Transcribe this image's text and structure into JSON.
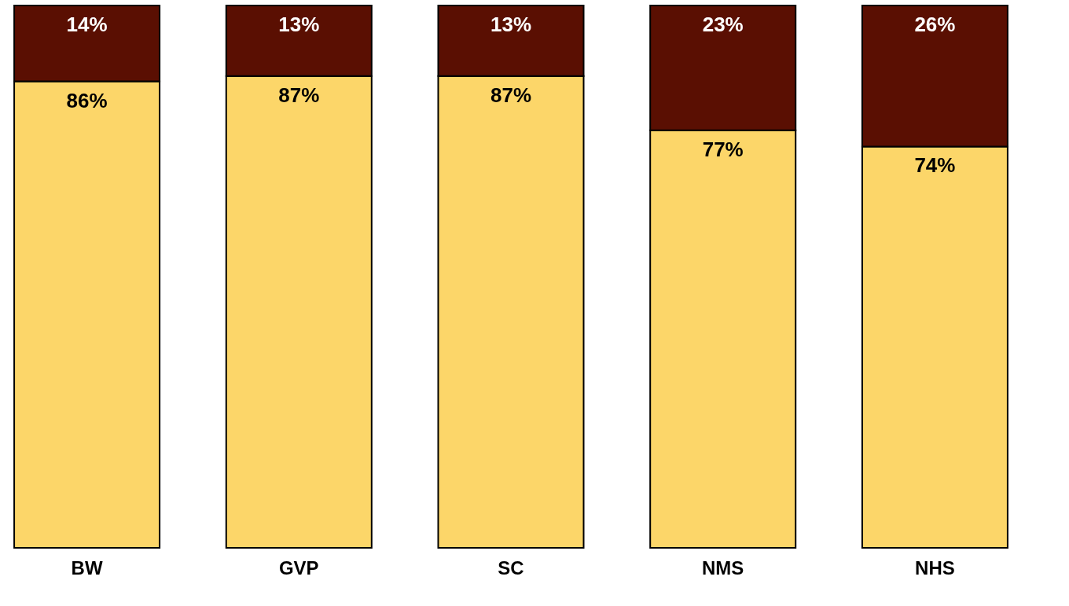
{
  "chart_data": {
    "type": "bar",
    "stacked": true,
    "categories": [
      "BW",
      "GVP",
      "SC",
      "NMS",
      "NHS"
    ],
    "series": [
      {
        "color": "#fcd669",
        "values": [
          86,
          87,
          87,
          77,
          74
        ],
        "value_labels": [
          "86%",
          "87%",
          "87%",
          "77%",
          "74%"
        ]
      },
      {
        "color": "#5a0f02",
        "values": [
          14,
          13,
          13,
          23,
          26
        ],
        "value_labels": [
          "14%",
          "13%",
          "13%",
          "23%",
          "26%"
        ]
      }
    ],
    "ylim": [
      0,
      100
    ],
    "tick_labels": "x"
  }
}
